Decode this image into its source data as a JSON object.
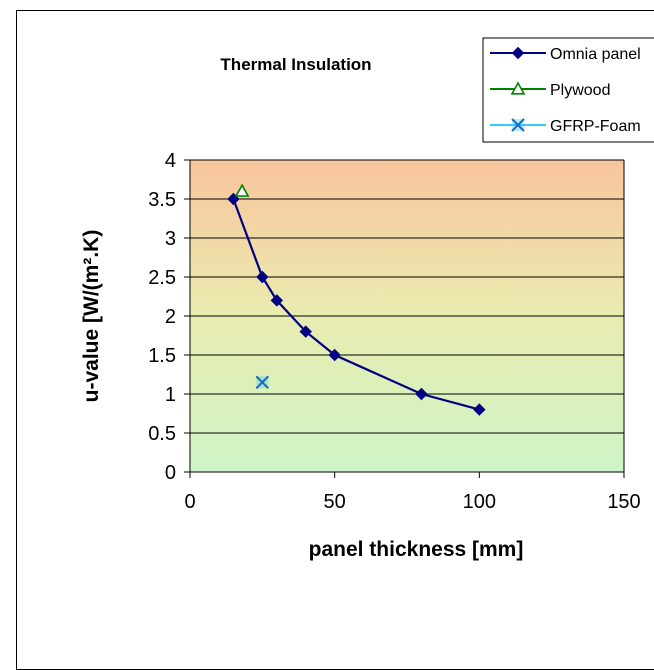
{
  "chart_data": {
    "type": "scatter",
    "title": "Thermal  Insulation",
    "xlabel": "panel thickness [mm]",
    "ylabel": "u-value [W/(m².K)",
    "xlim": [
      0,
      150
    ],
    "ylim": [
      0,
      4
    ],
    "x_ticks": [
      "0",
      "50",
      "100",
      "150"
    ],
    "y_ticks": [
      "0",
      "0.5",
      "1",
      "1.5",
      "2",
      "2.5",
      "3",
      "3.5",
      "4"
    ],
    "grid": "horizontal",
    "legend_position": "top-right",
    "series": [
      {
        "name": "Omnia panel",
        "marker": "diamond",
        "line": true,
        "color": "#000080",
        "points": [
          [
            15,
            3.5
          ],
          [
            25,
            2.5
          ],
          [
            30,
            2.2
          ],
          [
            40,
            1.8
          ],
          [
            50,
            1.5
          ],
          [
            80,
            1.0
          ],
          [
            100,
            0.8
          ]
        ]
      },
      {
        "name": "Plywood",
        "marker": "triangle",
        "line": false,
        "color": "#008000",
        "points": [
          [
            18,
            3.6
          ]
        ]
      },
      {
        "name": "GFRP-Foam",
        "marker": "x",
        "line": false,
        "color": "#33CCFF",
        "points": [
          [
            25,
            1.15
          ]
        ]
      }
    ],
    "background_gradient": [
      "#F9C59C",
      "#E9ECB0",
      "#CFF5C8"
    ]
  }
}
